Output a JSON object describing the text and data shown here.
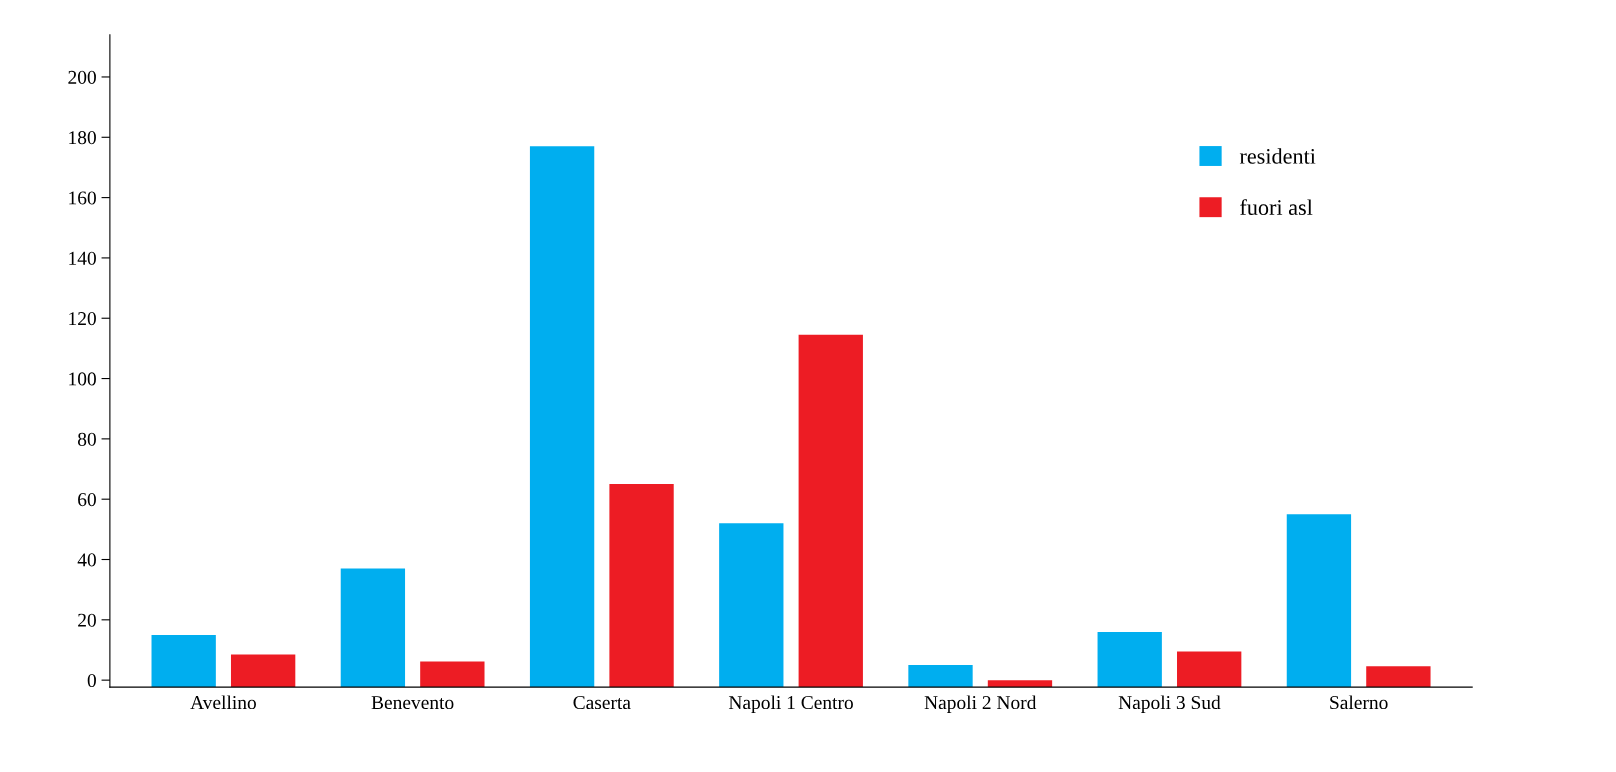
{
  "chart_data": {
    "type": "bar",
    "categories": [
      "Avellino",
      "Benevento",
      "Caserta",
      "Napoli 1 Centro",
      "Napoli 2 Nord",
      "Napoli 3 Sud",
      "Salerno"
    ],
    "series": [
      {
        "name": "residenti",
        "color": "#00aeef",
        "base": [
          -2.3,
          -2.3,
          -2.3,
          -2.3,
          -2.3,
          -2.3,
          -2.3
        ],
        "values": [
          17.3,
          39.3,
          179.3,
          54.3,
          7.3,
          18.3,
          57.3
        ]
      },
      {
        "name": "fuori asl",
        "color": "#ed1c24",
        "base": [
          -2.3,
          -2.3,
          -2.3,
          -2.3,
          -2.3,
          -2.3,
          -2.3
        ],
        "values": [
          10.8,
          8.5,
          67.3,
          116.8,
          2.3,
          11.8,
          6.9
        ]
      }
    ],
    "ylim": [
      -2.3,
      214
    ],
    "yticks": [
      0,
      20,
      40,
      60,
      80,
      100,
      120,
      140,
      160,
      180,
      200
    ],
    "legend": "top right",
    "grid": false
  }
}
